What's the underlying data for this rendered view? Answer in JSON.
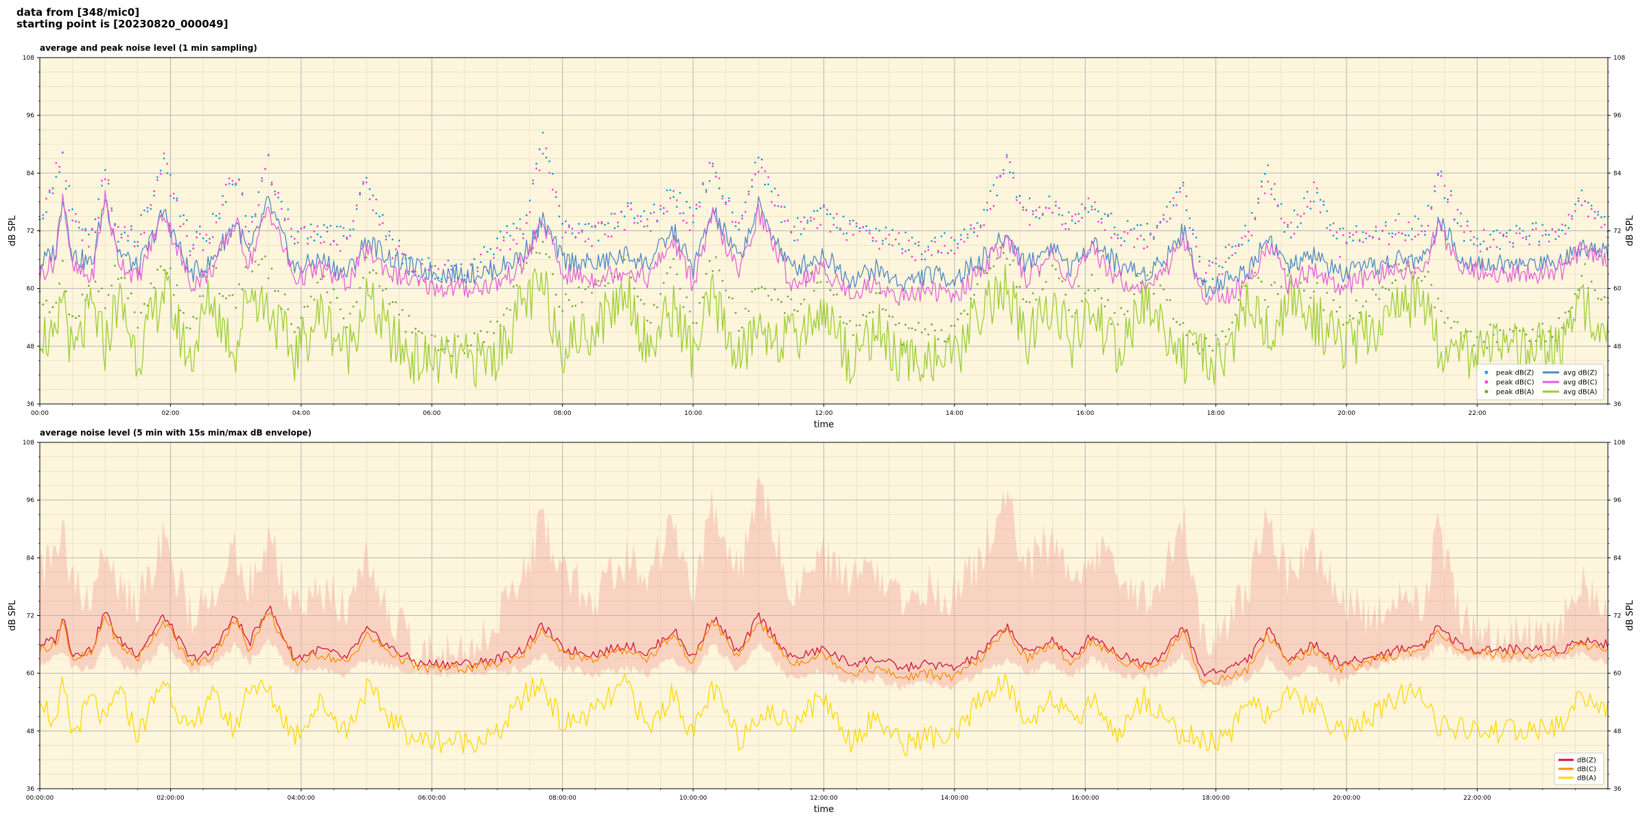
{
  "header": {
    "line1": "data from [348/mic0]",
    "line2": "starting point is [20230820_000049]"
  },
  "colors": {
    "plot_background": "#fdf6dc",
    "grid_major": "#b4b4b4",
    "grid_minor": "#e6dfc4"
  },
  "chart_data": [
    {
      "type": "line",
      "title": "average and peak noise level (1 min sampling)",
      "xlabel": "time",
      "ylabel": "dB SPL",
      "xlim": [
        "00:00",
        "24:00"
      ],
      "ylim": [
        36,
        108
      ],
      "yticks": [
        "36",
        "48",
        "60",
        "72",
        "84",
        "96",
        "108"
      ],
      "xticks": [
        "00:00",
        "02:00",
        "04:00",
        "06:00",
        "08:00",
        "10:00",
        "12:00",
        "14:00",
        "16:00",
        "18:00",
        "20:00",
        "22:00"
      ],
      "grid": true,
      "legend_position": "bottom-right",
      "legend_columns": 2,
      "x_hours": [
        0,
        0.25,
        0.35,
        0.5,
        0.8,
        1.0,
        1.2,
        1.5,
        1.9,
        2.3,
        2.6,
        3.0,
        3.2,
        3.5,
        3.9,
        4.3,
        4.7,
        5.0,
        5.4,
        5.8,
        6.2,
        6.6,
        7.0,
        7.4,
        7.7,
        8.0,
        8.5,
        9.0,
        9.3,
        9.7,
        10.0,
        10.3,
        10.7,
        11.0,
        11.5,
        12.0,
        12.4,
        12.8,
        13.2,
        13.6,
        14.0,
        14.4,
        14.8,
        15.1,
        15.5,
        15.8,
        16.1,
        16.5,
        16.9,
        17.2,
        17.5,
        17.8,
        18.2,
        18.5,
        18.8,
        19.1,
        19.5,
        19.9,
        20.3,
        20.8,
        21.2,
        21.4,
        21.8,
        22.3,
        22.8,
        23.3,
        23.6,
        24.0
      ],
      "series": [
        {
          "name": "avg dB(Z)",
          "color": "#4f86c6",
          "values": [
            65,
            68,
            80,
            67,
            65,
            79,
            68,
            64,
            76,
            63,
            65,
            74,
            67,
            78,
            64,
            66,
            63,
            70,
            66,
            64,
            63,
            63,
            64,
            67,
            74,
            66,
            65,
            67,
            65,
            72,
            64,
            76,
            66,
            77,
            64,
            67,
            62,
            64,
            61,
            63,
            62,
            66,
            71,
            65,
            69,
            64,
            70,
            65,
            63,
            66,
            72,
            60,
            62,
            64,
            71,
            64,
            67,
            63,
            64,
            66,
            66,
            74,
            66,
            65,
            65,
            66,
            69,
            68
          ]
        },
        {
          "name": "avg dB(C)",
          "color": "#e35fd8",
          "values": [
            63,
            66,
            80,
            64,
            62,
            79,
            66,
            62,
            76,
            61,
            63,
            74,
            65,
            77,
            62,
            64,
            61,
            68,
            63,
            61,
            60,
            60,
            61,
            65,
            74,
            63,
            62,
            64,
            62,
            70,
            61,
            75,
            63,
            76,
            61,
            64,
            59,
            61,
            58,
            60,
            58,
            64,
            70,
            62,
            67,
            61,
            68,
            62,
            60,
            63,
            71,
            58,
            59,
            61,
            70,
            61,
            64,
            60,
            62,
            64,
            64,
            73,
            64,
            63,
            63,
            64,
            68,
            66
          ]
        },
        {
          "name": "avg dB(A)",
          "color": "#9acd32",
          "values": [
            52,
            47,
            60,
            45,
            56,
            48,
            58,
            46,
            60,
            45,
            58,
            47,
            60,
            56,
            46,
            55,
            47,
            58,
            49,
            45,
            45,
            45,
            46,
            57,
            60,
            48,
            52,
            60,
            47,
            56,
            46,
            58,
            45,
            52,
            49,
            56,
            45,
            52,
            44,
            46,
            45,
            56,
            60,
            48,
            58,
            48,
            56,
            46,
            57,
            52,
            46,
            45,
            46,
            58,
            50,
            57,
            54,
            48,
            50,
            57,
            58,
            48,
            47,
            47,
            47,
            48,
            57,
            52
          ]
        },
        {
          "name": "peak dB(Z)",
          "color": "#1f9fd6",
          "marker": "dot",
          "values": [
            72,
            84,
            86,
            76,
            71,
            84,
            72,
            71,
            86,
            70,
            72,
            84,
            71,
            86,
            71,
            72,
            71,
            82,
            69,
            64,
            64,
            64,
            69,
            73,
            90,
            74,
            72,
            76,
            74,
            80,
            74,
            86,
            73,
            86,
            72,
            76,
            73,
            72,
            70,
            68,
            70,
            74,
            86,
            76,
            78,
            74,
            78,
            72,
            71,
            74,
            82,
            62,
            68,
            72,
            84,
            72,
            80,
            70,
            72,
            73,
            73,
            84,
            72,
            70,
            71,
            72,
            78,
            72
          ]
        },
        {
          "name": "peak dB(C)",
          "color": "#ff3fd8",
          "marker": "dot",
          "values": [
            71,
            84,
            86,
            75,
            70,
            84,
            71,
            70,
            86,
            69,
            71,
            84,
            70,
            86,
            70,
            71,
            70,
            82,
            68,
            63,
            63,
            63,
            68,
            72,
            90,
            73,
            71,
            75,
            73,
            80,
            73,
            86,
            72,
            86,
            71,
            75,
            72,
            71,
            69,
            67,
            69,
            73,
            86,
            75,
            77,
            73,
            77,
            71,
            70,
            73,
            82,
            61,
            67,
            71,
            84,
            71,
            80,
            69,
            71,
            72,
            72,
            84,
            71,
            69,
            70,
            71,
            78,
            71
          ]
        },
        {
          "name": "peak dB(A)",
          "color": "#6ea83a",
          "marker": "dot",
          "values": [
            58,
            56,
            66,
            52,
            62,
            58,
            64,
            54,
            66,
            52,
            64,
            56,
            66,
            64,
            52,
            62,
            54,
            64,
            56,
            50,
            48,
            48,
            52,
            64,
            70,
            56,
            60,
            66,
            54,
            64,
            52,
            66,
            52,
            60,
            56,
            64,
            52,
            58,
            50,
            52,
            50,
            62,
            68,
            56,
            66,
            56,
            62,
            52,
            64,
            58,
            52,
            48,
            50,
            64,
            58,
            64,
            60,
            54,
            56,
            64,
            64,
            56,
            50,
            50,
            50,
            52,
            64,
            58
          ]
        }
      ]
    },
    {
      "type": "line",
      "title": "average noise level (5 min with 15s min/max dB envelope)",
      "xlabel": "time",
      "ylabel": "dB SPL",
      "xlim": [
        "00:00:00",
        "24:00:00"
      ],
      "ylim": [
        36,
        108
      ],
      "yticks": [
        "36",
        "48",
        "60",
        "72",
        "84",
        "96",
        "108"
      ],
      "xticks": [
        "00:00:00",
        "02:00:00",
        "04:00:00",
        "06:00:00",
        "08:00:00",
        "10:00:00",
        "12:00:00",
        "14:00:00",
        "16:00:00",
        "18:00:00",
        "20:00:00",
        "22:00:00"
      ],
      "grid": true,
      "legend_position": "bottom-right",
      "legend_columns": 1,
      "x_hours": [
        0,
        0.25,
        0.35,
        0.5,
        0.8,
        1.0,
        1.2,
        1.5,
        1.9,
        2.3,
        2.6,
        3.0,
        3.2,
        3.5,
        3.9,
        4.3,
        4.7,
        5.0,
        5.4,
        5.8,
        6.2,
        6.6,
        7.0,
        7.4,
        7.7,
        8.0,
        8.5,
        9.0,
        9.3,
        9.7,
        10.0,
        10.3,
        10.7,
        11.0,
        11.5,
        12.0,
        12.4,
        12.8,
        13.2,
        13.6,
        14.0,
        14.4,
        14.8,
        15.1,
        15.5,
        15.8,
        16.1,
        16.5,
        16.9,
        17.2,
        17.5,
        17.8,
        18.2,
        18.5,
        18.8,
        19.1,
        19.5,
        19.9,
        20.3,
        20.8,
        21.2,
        21.4,
        21.8,
        22.3,
        22.8,
        23.3,
        23.6,
        24.0
      ],
      "envelope": {
        "color": "#f4a8a0",
        "min": [
          62,
          63,
          65,
          61,
          61,
          66,
          62,
          60,
          66,
          60,
          61,
          66,
          62,
          67,
          60,
          61,
          60,
          63,
          61,
          60,
          60,
          60,
          60,
          61,
          64,
          61,
          60,
          61,
          60,
          63,
          59,
          66,
          60,
          66,
          59,
          61,
          58,
          59,
          57,
          58,
          57,
          60,
          63,
          60,
          62,
          59,
          63,
          60,
          59,
          60,
          64,
          57,
          58,
          59,
          63,
          59,
          61,
          58,
          61,
          63,
          63,
          66,
          63,
          63,
          63,
          63,
          64,
          62
        ],
        "max": [
          80,
          88,
          90,
          78,
          76,
          86,
          80,
          74,
          88,
          72,
          76,
          86,
          78,
          88,
          74,
          78,
          74,
          86,
          72,
          64,
          64,
          64,
          72,
          80,
          92,
          80,
          76,
          84,
          80,
          90,
          76,
          96,
          80,
          98,
          78,
          84,
          80,
          82,
          76,
          78,
          76,
          84,
          98,
          82,
          88,
          78,
          86,
          80,
          76,
          80,
          94,
          66,
          70,
          78,
          92,
          80,
          86,
          76,
          72,
          76,
          74,
          90,
          70,
          68,
          68,
          70,
          78,
          72
        ]
      },
      "series": [
        {
          "name": "dB(Z)",
          "color": "#d0103a",
          "values": [
            66,
            67,
            72,
            64,
            65,
            73,
            67,
            64,
            72,
            63,
            64,
            72,
            66,
            74,
            63,
            65,
            63,
            69,
            65,
            62,
            62,
            62,
            63,
            65,
            70,
            65,
            64,
            66,
            64,
            69,
            63,
            72,
            64,
            72,
            63,
            65,
            62,
            63,
            61,
            62,
            61,
            64,
            70,
            64,
            67,
            63,
            68,
            64,
            62,
            64,
            70,
            60,
            61,
            63,
            69,
            63,
            66,
            62,
            63,
            65,
            66,
            70,
            65,
            65,
            65,
            65,
            67,
            66
          ]
        },
        {
          "name": "dB(C)",
          "color": "#ff8c00",
          "values": [
            65,
            66,
            71,
            63,
            64,
            72,
            66,
            63,
            71,
            62,
            63,
            71,
            65,
            73,
            62,
            64,
            62,
            68,
            64,
            61,
            61,
            61,
            62,
            64,
            69,
            64,
            63,
            65,
            63,
            68,
            62,
            71,
            63,
            71,
            62,
            64,
            60,
            61,
            59,
            60,
            59,
            63,
            69,
            63,
            66,
            62,
            67,
            63,
            61,
            63,
            69,
            58,
            59,
            61,
            68,
            62,
            65,
            61,
            62,
            64,
            65,
            69,
            64,
            64,
            64,
            64,
            66,
            65
          ]
        },
        {
          "name": "dB(A)",
          "color": "#ffd700",
          "values": [
            56,
            48,
            58,
            47,
            55,
            49,
            57,
            47,
            59,
            47,
            56,
            48,
            58,
            56,
            47,
            54,
            48,
            57,
            50,
            46,
            46,
            46,
            47,
            55,
            58,
            49,
            52,
            58,
            48,
            56,
            47,
            57,
            46,
            52,
            50,
            55,
            46,
            51,
            45,
            47,
            46,
            55,
            58,
            49,
            56,
            49,
            55,
            47,
            55,
            51,
            47,
            46,
            46,
            56,
            51,
            55,
            53,
            48,
            50,
            55,
            56,
            49,
            48,
            48,
            48,
            49,
            56,
            52
          ]
        }
      ]
    }
  ]
}
